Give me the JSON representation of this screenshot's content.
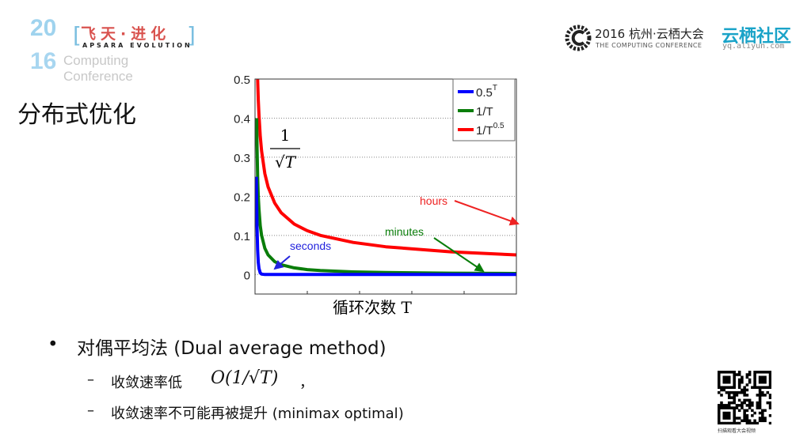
{
  "header": {
    "event_logo": {
      "year_top": "20",
      "year_bottom": "16",
      "cn": "飞天·进化",
      "en": "APSARA EVOLUTION",
      "sub1": "Computing",
      "sub2": "Conference"
    },
    "conference": {
      "title": "2016 杭州·云栖大会",
      "subtitle": "THE COMPUTING CONFERENCE"
    },
    "community": {
      "name": "云栖社区",
      "url": "yq.aliyun.com"
    }
  },
  "slide": {
    "title": "分布式优化",
    "bullets": [
      {
        "marker": "•",
        "text": "对偶平均法 (Dual average method)",
        "sub": [
          {
            "marker": "–",
            "text": "收敛速率低",
            "math": "O(1/√T)",
            "suffix": "，"
          },
          {
            "marker": "–",
            "text": "收敛速率不可能再被提升 (minimax optimal)"
          }
        ]
      }
    ],
    "qr_caption": "扫描观看大会视频"
  },
  "chart_data": {
    "type": "line",
    "xlabel": "循环次数 T",
    "ylabel": "",
    "xlim": [
      0,
      400
    ],
    "ylim": [
      -0.05,
      0.5
    ],
    "yticks": [
      "0",
      "0.1",
      "0.2",
      "0.3",
      "0.4",
      "0.5"
    ],
    "ytick_values": [
      0,
      0.1,
      0.2,
      0.3,
      0.4,
      0.5
    ],
    "xticks_count": 6,
    "grid": "horizontal dotted",
    "legend": "top-right",
    "inline_label": "1/√T",
    "series": [
      {
        "name": "0.5^T",
        "label_base": "0.5",
        "label_sup": "T",
        "color": "#0000ff",
        "x": [
          2,
          3,
          4,
          5,
          6,
          8,
          10,
          15,
          20,
          40,
          100,
          200,
          400
        ],
        "y": [
          0.25,
          0.125,
          0.0625,
          0.031,
          0.0156,
          0.004,
          0.001,
          0,
          0,
          0,
          0,
          0,
          0
        ]
      },
      {
        "name": "1/T",
        "label_base": "1/T",
        "label_sup": "",
        "color": "#0a7d0a",
        "x": [
          2.5,
          3,
          4,
          5,
          6,
          8,
          10,
          15,
          20,
          30,
          40,
          60,
          80,
          100,
          150,
          200,
          300,
          400
        ],
        "y": [
          0.4,
          0.333,
          0.25,
          0.2,
          0.167,
          0.125,
          0.1,
          0.067,
          0.05,
          0.033,
          0.025,
          0.017,
          0.0125,
          0.01,
          0.0067,
          0.005,
          0.0033,
          0.0025
        ]
      },
      {
        "name": "1/T^0.5",
        "label_base": "1/T",
        "label_sup": "0.5",
        "color": "#ff0000",
        "x": [
          4,
          5,
          6,
          8,
          10,
          15,
          20,
          30,
          40,
          60,
          80,
          100,
          150,
          200,
          300,
          400
        ],
        "y": [
          0.5,
          0.447,
          0.408,
          0.354,
          0.316,
          0.258,
          0.224,
          0.183,
          0.158,
          0.129,
          0.112,
          0.1,
          0.082,
          0.071,
          0.058,
          0.05
        ]
      }
    ],
    "annotations": [
      {
        "text": "seconds",
        "color": "#2222dd"
      },
      {
        "text": "minutes",
        "color": "#0a7d0a"
      },
      {
        "text": "hours",
        "color": "#ee2222"
      }
    ]
  }
}
